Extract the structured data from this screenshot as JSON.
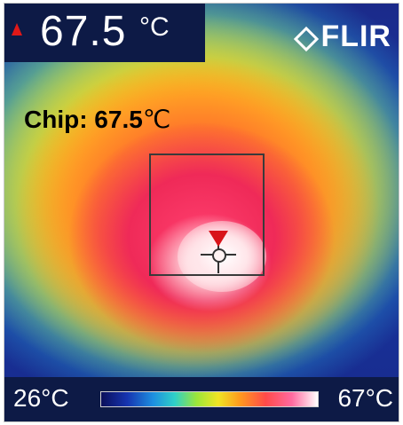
{
  "reading": {
    "value": "67.5",
    "unit": "°C",
    "alarm_icon": "alarm-triangle-icon"
  },
  "brand": {
    "name": "FLIR",
    "icon": "flir-logo-icon"
  },
  "annotation": {
    "label": "Chip: 67.5",
    "unit": "℃"
  },
  "scale": {
    "min": "26°C",
    "max": "67°C"
  },
  "colors": {
    "bar_bg": "#0d1a46",
    "hot_marker": "#d8141a",
    "roi_box": "#3a3a3a"
  }
}
